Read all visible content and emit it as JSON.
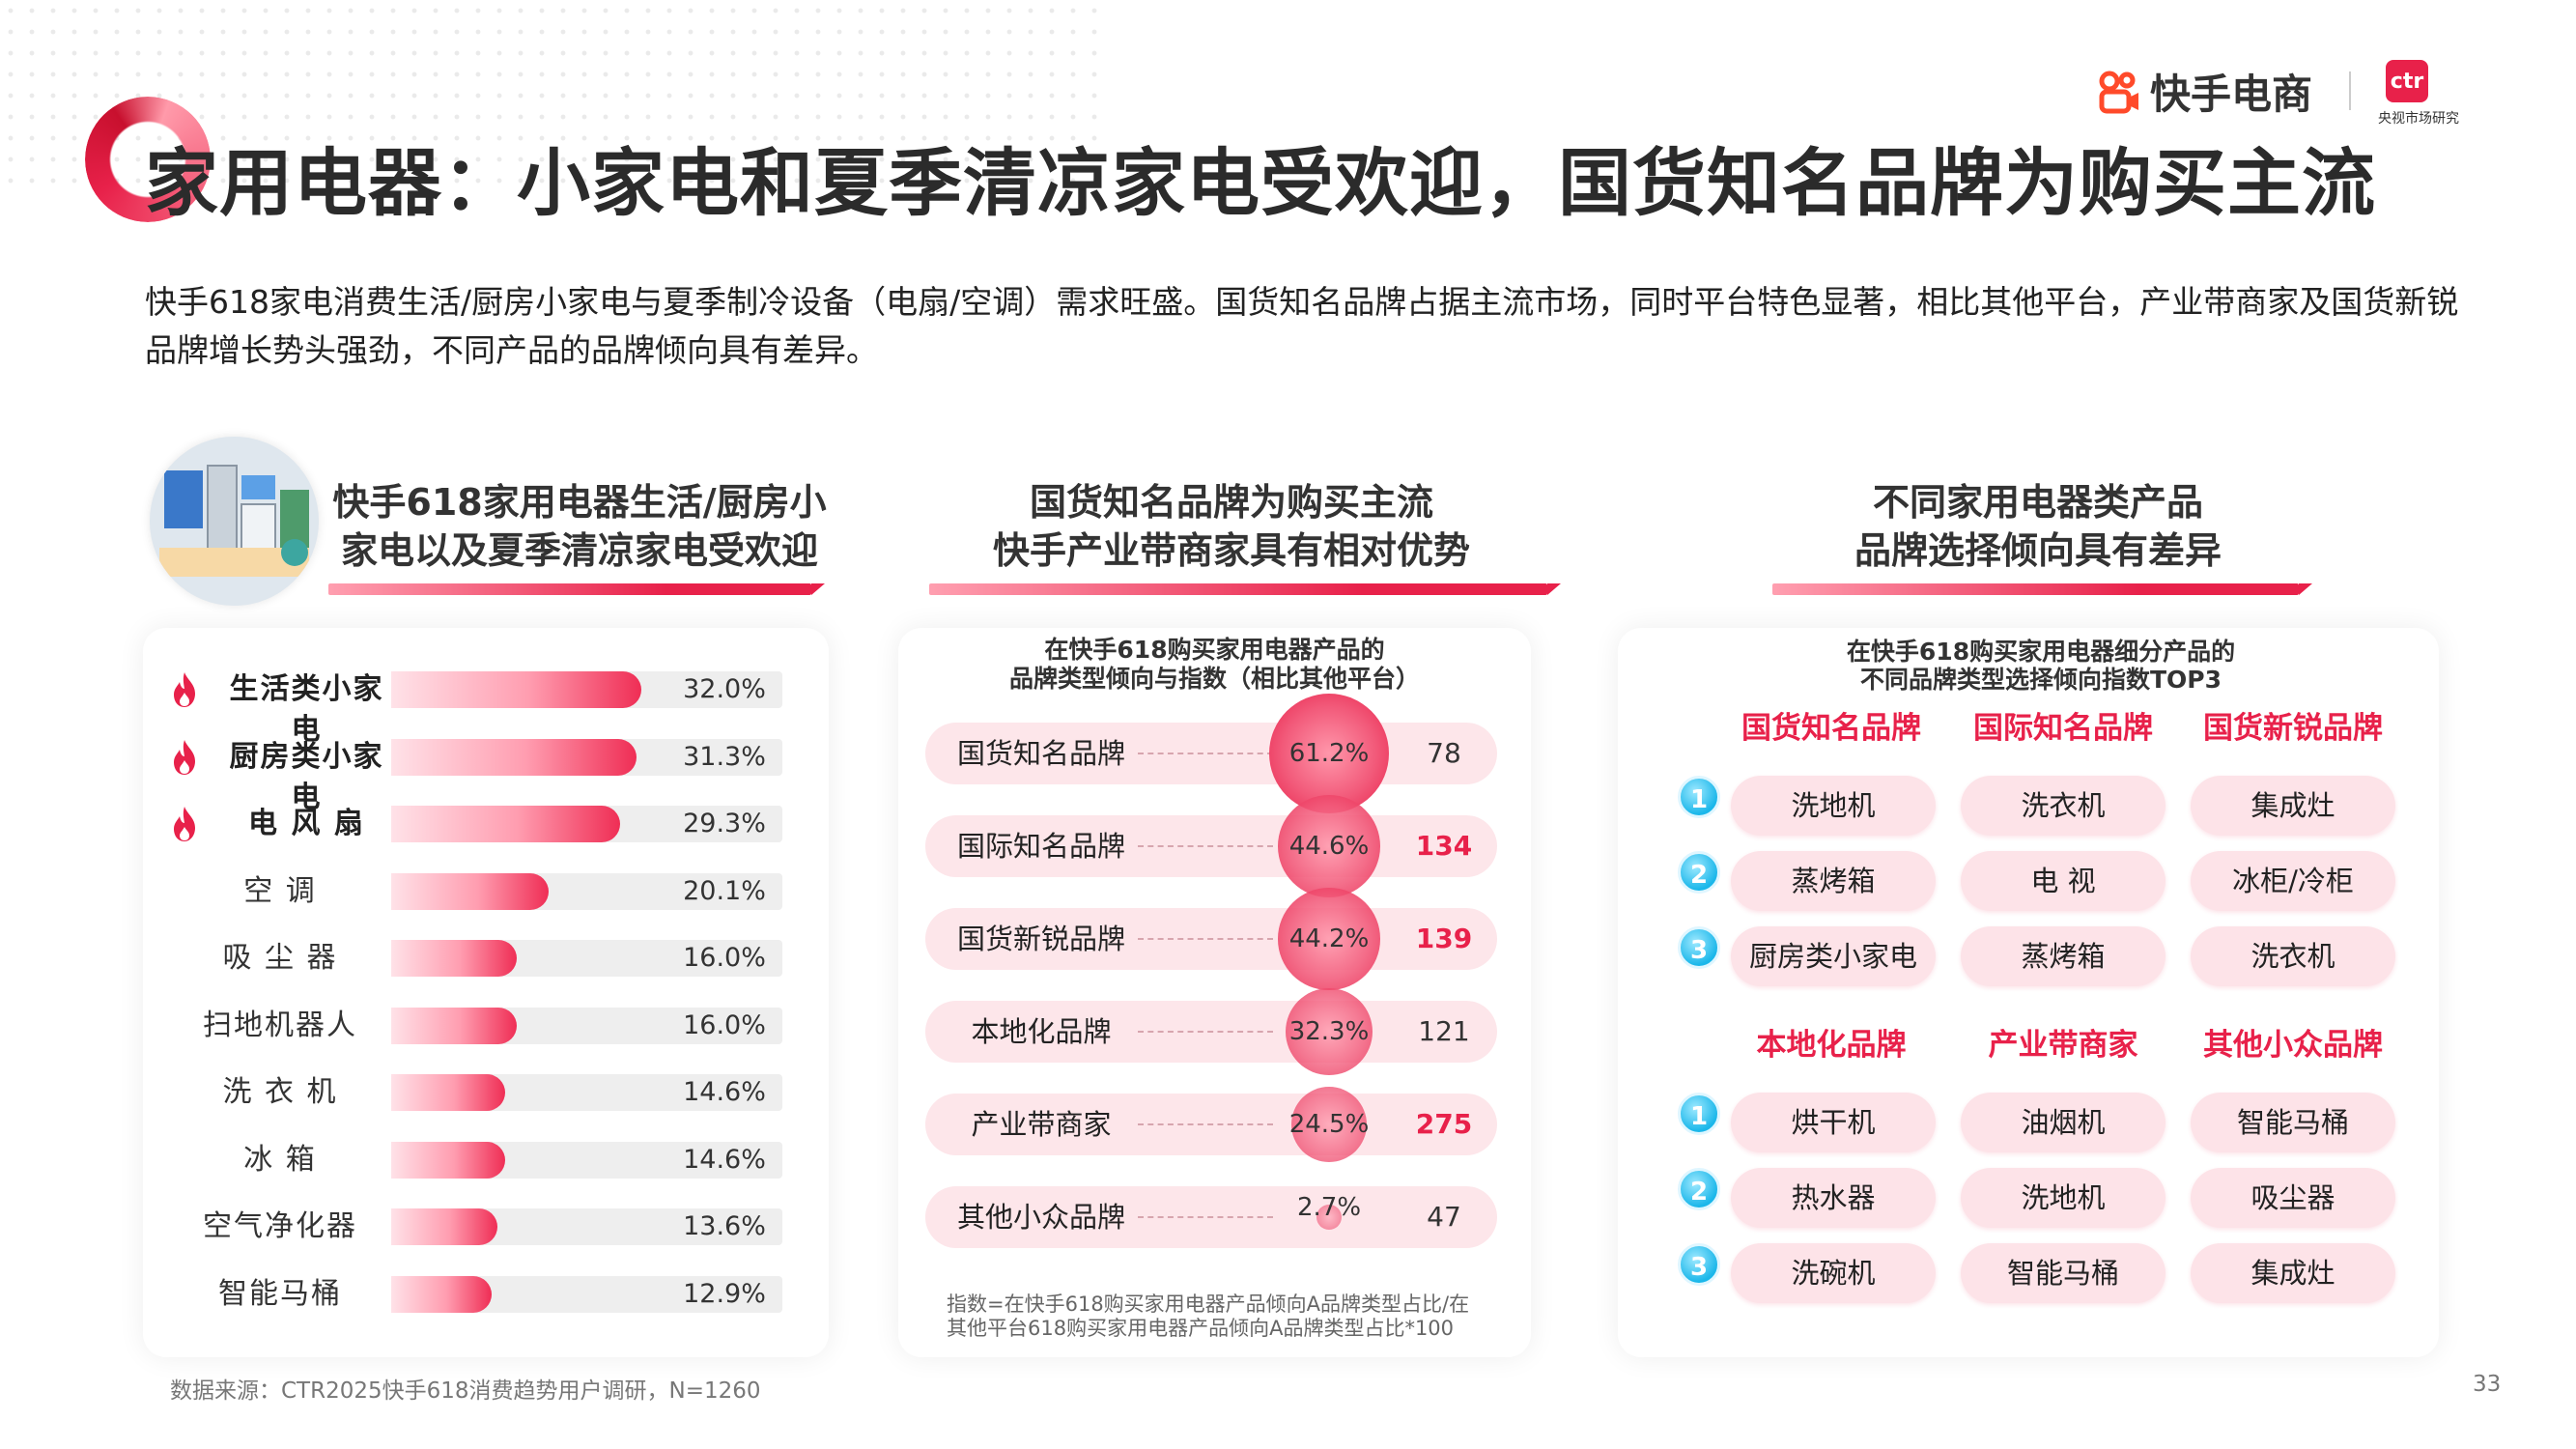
{
  "header": {
    "title": "家用电器：小家电和夏季清凉家电受欢迎，国货知名品牌为购买主流",
    "logo_text": "快手电商",
    "ctr_logo": "ctr",
    "ctr_sub": "央视市场研究",
    "intro": "快手618家电消费生活/厨房小家电与夏季制冷设备（电扇/空调）需求旺盛。国货知名品牌占据主流市场，同时平台特色显著，相比其他平台，产业带商家及国货新锐品牌增长势头强劲，不同产品的品牌倾向具有差异。"
  },
  "left": {
    "heading_line1": "快手618家用电器生活/厨房小",
    "heading_line2": "家电以及夏季清凉家电受欢迎"
  },
  "middle": {
    "heading_line1": "国货知名品牌为购买主流",
    "heading_line2": "快手产业带商家具有相对优势",
    "caption_line1": "在快手618购买家用电器产品的",
    "caption_line2": "品牌类型倾向与指数（相比其他平台）",
    "note": "指数=在快手618购买家用电器产品倾向A品牌类型占比/在其他平台618购买家用电器产品倾向A品牌类型占比*100"
  },
  "right": {
    "heading_line1": "不同家用电器类产品",
    "heading_line2": "品牌选择倾向具有差异",
    "caption_line1": "在快手618购买家用电器细分产品的",
    "caption_line2": "不同品牌类型选择倾向指数TOP3",
    "group1": {
      "headers": [
        "国货知名品牌",
        "国际知名品牌",
        "国货新锐品牌"
      ],
      "ranks": [
        "1",
        "2",
        "3"
      ],
      "rows": [
        [
          "洗地机",
          "洗衣机",
          "集成灶"
        ],
        [
          "蒸烤箱",
          "电 视",
          "冰柜/冷柜"
        ],
        [
          "厨房类小家电",
          "蒸烤箱",
          "洗衣机"
        ]
      ]
    },
    "group2": {
      "headers": [
        "本地化品牌",
        "产业带商家",
        "其他小众品牌"
      ],
      "ranks": [
        "1",
        "2",
        "3"
      ],
      "rows": [
        [
          "烘干机",
          "油烟机",
          "智能马桶"
        ],
        [
          "热水器",
          "洗地机",
          "吸尘器"
        ],
        [
          "洗碗机",
          "智能马桶",
          "集成灶"
        ]
      ]
    }
  },
  "footer": {
    "source": "数据来源：CTR2025快手618消费趋势用户调研，N=1260",
    "page": "33"
  },
  "colors": {
    "accent": "#e8214a",
    "pill": "#fde3e8",
    "rank_badge": "#1bb7ea"
  },
  "chart_data": [
    {
      "type": "bar",
      "orientation": "horizontal",
      "categories": [
        "生活类小家电",
        "厨房类小家电",
        "电 风 扇",
        "空 调",
        "吸 尘 器",
        "扫地机器人",
        "洗 衣 机",
        "冰 箱",
        "空气净化器",
        "智能马桶"
      ],
      "values": [
        32.0,
        31.3,
        29.3,
        20.1,
        16.0,
        16.0,
        14.6,
        14.6,
        13.6,
        12.9
      ],
      "value_labels": [
        "32.0%",
        "31.3%",
        "29.3%",
        "20.1%",
        "16.0%",
        "16.0%",
        "14.6%",
        "14.6%",
        "13.6%",
        "12.9%"
      ],
      "highlight_fire": [
        true,
        true,
        true,
        false,
        false,
        false,
        false,
        false,
        false,
        false
      ],
      "xlim": [
        0,
        100
      ],
      "unit": "%"
    },
    {
      "type": "table",
      "categories": [
        "国货知名品牌",
        "国际知名品牌",
        "国货新锐品牌",
        "本地化品牌",
        "产业带商家",
        "其他小众品牌"
      ],
      "values": [
        61.2,
        44.6,
        44.2,
        32.3,
        24.5,
        2.7
      ],
      "value_labels": [
        "61.2%",
        "44.6%",
        "44.2%",
        "32.3%",
        "24.5%",
        "2.7%"
      ],
      "index": [
        78,
        134,
        139,
        121,
        275,
        47
      ],
      "index_labels": [
        "78",
        "134",
        "139",
        "121",
        "275",
        "47"
      ],
      "index_highlight": [
        false,
        true,
        true,
        false,
        true,
        false
      ]
    }
  ]
}
